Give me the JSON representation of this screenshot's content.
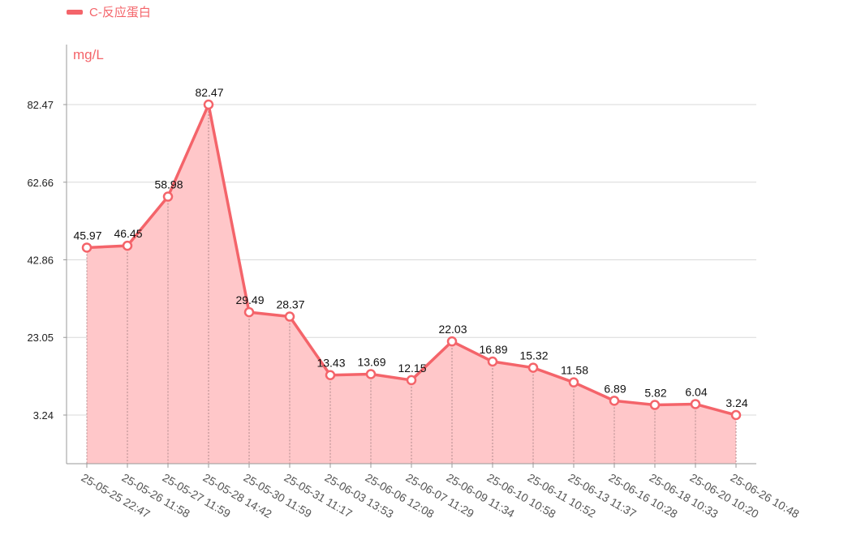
{
  "colors": {
    "series": "#f4646a",
    "fill": "#ffc7c9",
    "grid": "#d9d9d9",
    "axis": "#999999"
  },
  "chart_data": {
    "type": "area",
    "legend": {
      "position": "top-left"
    },
    "series": [
      {
        "name": "C-反应蛋白",
        "values": [
          45.97,
          46.45,
          58.98,
          82.47,
          29.49,
          28.37,
          13.43,
          13.69,
          12.15,
          22.03,
          16.89,
          15.32,
          11.58,
          6.89,
          5.82,
          6.04,
          3.24
        ]
      }
    ],
    "categories": [
      "25-05-25 22:47",
      "25-05-26 11:58",
      "25-05-27 11:59",
      "25-05-28 14:42",
      "25-05-30 11:59",
      "25-05-31 11:17",
      "25-06-03 13:53",
      "25-06-06 12:08",
      "25-06-07 11:29",
      "25-06-09 11:34",
      "25-06-10 10:58",
      "25-06-11 10:52",
      "25-06-13 11:37",
      "25-06-16 10:28",
      "25-06-18 10:33",
      "25-06-20 10:20",
      "25-06-26 10:48"
    ],
    "ylabel": "mg/L",
    "yticks": [
      "3.24",
      "23.05",
      "42.86",
      "62.66",
      "82.47"
    ],
    "grid": true,
    "data_labels": [
      "45.97",
      "46.45",
      "58.98",
      "82.47",
      "29.49",
      "28.37",
      "13.43",
      "13.69",
      "12.15",
      "22.03",
      "16.89",
      "15.32",
      "11.58",
      "6.89",
      "5.82",
      "6.04",
      "3.24"
    ]
  }
}
